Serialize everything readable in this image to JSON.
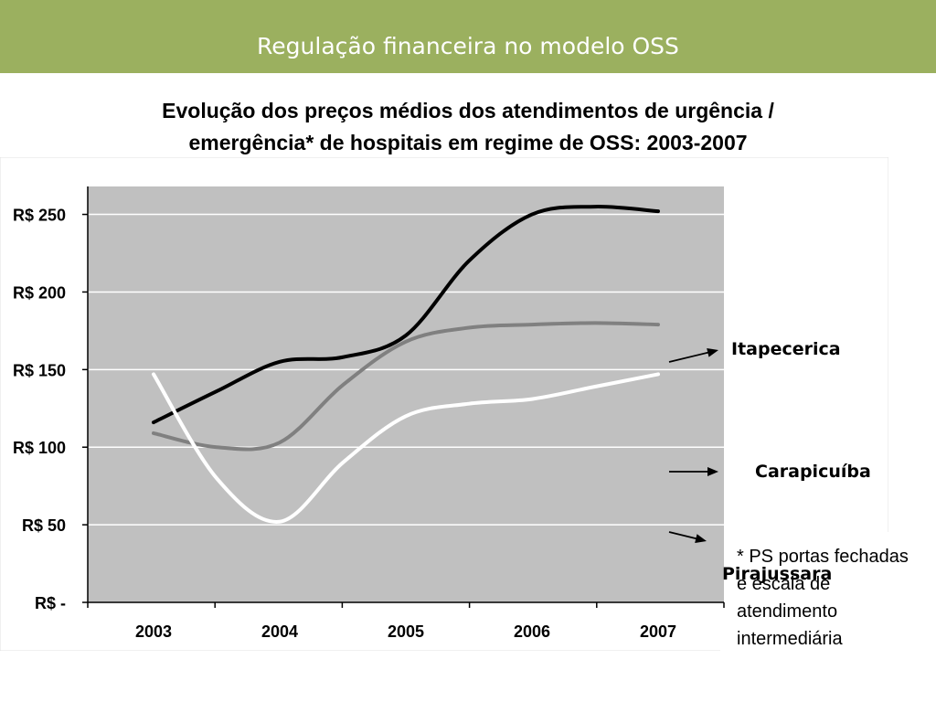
{
  "slide": {
    "title": "Regulação financeira no modelo OSS",
    "subtitle_line1": "Evolução dos preços médios dos atendimentos de urgência /",
    "subtitle_line2": "emergência* de hospitais em regime de OSS: 2003-2007",
    "footnote_lines": [
      "* PS portas fechadas",
      "e escala de",
      "atendimento",
      "intermediária"
    ]
  },
  "colors": {
    "header_bg": "#9bb05f",
    "plot_bg": "#c0c0c0",
    "gridline": "#ffffff",
    "itapecerica": "#000000",
    "carapicuiba": "#808080",
    "pirajussara": "#ffffff"
  },
  "chart_data": {
    "type": "line",
    "categories": [
      "2003",
      "2004",
      "2005",
      "2006",
      "2007"
    ],
    "y_tick_labels": [
      "R$ -",
      "R$ 50",
      "R$ 100",
      "R$ 150",
      "R$ 200",
      "R$ 250"
    ],
    "y_ticks": [
      0,
      50,
      100,
      150,
      200,
      250
    ],
    "ylim": [
      0,
      268
    ],
    "grid": true,
    "smooth": true,
    "series": [
      {
        "name": "Itapecerica",
        "color_key": "itapecerica",
        "x": [
          2003,
          2003.5,
          2004,
          2004.5,
          2005,
          2005.5,
          2006,
          2006.5,
          2007
        ],
        "values": [
          116,
          136,
          155,
          158,
          172,
          220,
          250,
          255,
          252
        ]
      },
      {
        "name": "Carapicuíba",
        "color_key": "carapicuiba",
        "x": [
          2003,
          2003.5,
          2004,
          2004.5,
          2005,
          2005.5,
          2006,
          2006.5,
          2007
        ],
        "values": [
          109,
          100,
          103,
          140,
          168,
          177,
          179,
          180,
          179
        ]
      },
      {
        "name": "Pirajussara",
        "color_key": "pirajussara",
        "x": [
          2003,
          2003.5,
          2004,
          2004.5,
          2005,
          2005.5,
          2006,
          2006.5,
          2007
        ],
        "values": [
          147,
          80,
          52,
          90,
          120,
          128,
          131,
          139,
          147
        ]
      }
    ],
    "annotations": [
      "Itapecerica",
      "Carapicuíba",
      "Pirajussara"
    ]
  }
}
